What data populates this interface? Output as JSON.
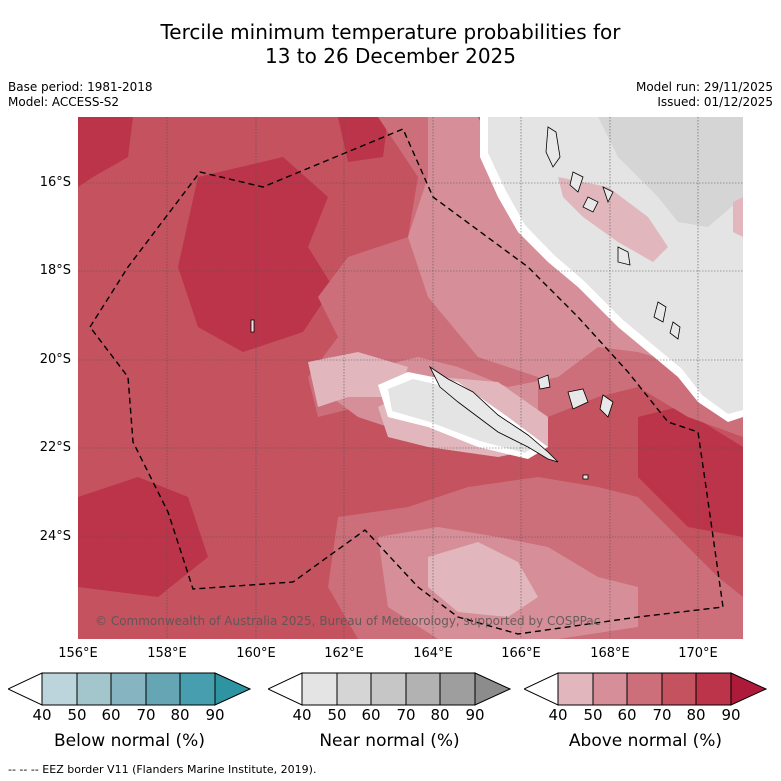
{
  "title": {
    "line1": "Tercile minimum temperature probabilities for",
    "line2": "13 to 26 December 2025"
  },
  "meta": {
    "base_period": "Base period: 1981-2018",
    "model": "Model: ACCESS-S2",
    "model_run": "Model run: 29/11/2025",
    "issued": "Issued: 01/12/2025"
  },
  "map": {
    "lat_labels": [
      "16°S",
      "18°S",
      "20°S",
      "22°S",
      "24°S"
    ],
    "lon_labels": [
      "156°E",
      "158°E",
      "160°E",
      "162°E",
      "164°E",
      "166°E",
      "168°E",
      "170°E"
    ],
    "copyright": "© Commonwealth of Australia 2025, Bureau of Meteorology, supported by COSPPac"
  },
  "colorbars": [
    {
      "label": "Below normal (%)",
      "ticks": [
        "40",
        "50",
        "60",
        "70",
        "80",
        "90"
      ],
      "colors": [
        "#ffffff",
        "#bcd4db",
        "#a3c6cd",
        "#86b4c0",
        "#66a5b4",
        "#469eae",
        "#2e94a2"
      ]
    },
    {
      "label": "Near normal (%)",
      "ticks": [
        "40",
        "50",
        "60",
        "70",
        "80",
        "90"
      ],
      "colors": [
        "#ffffff",
        "#e4e4e4",
        "#d5d5d5",
        "#c6c6c6",
        "#b2b2b2",
        "#9e9e9e",
        "#8c8c8c"
      ]
    },
    {
      "label": "Above normal (%)",
      "ticks": [
        "40",
        "50",
        "60",
        "70",
        "80",
        "90"
      ],
      "colors": [
        "#ffffff",
        "#e1b7bd",
        "#d68f98",
        "#cc6f7a",
        "#c4525f",
        "#bb3449",
        "#ad1a3a"
      ]
    }
  ],
  "footer": "-- -- -- EEZ border V11 (Flanders Marine Institute, 2019)."
}
